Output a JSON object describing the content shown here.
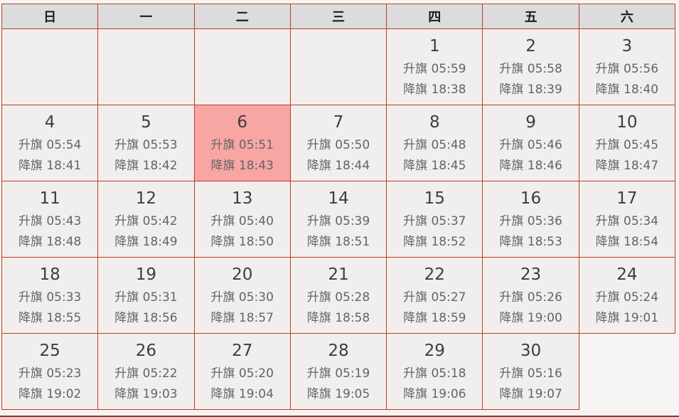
{
  "calendar": {
    "weekday_headers": [
      "日",
      "一",
      "二",
      "三",
      "四",
      "五",
      "六"
    ],
    "raise_label": "升旗",
    "lower_label": "降旗",
    "leading_empty_cells": 4,
    "trailing_ghost_cells": 1,
    "highlighted_day": 6,
    "days": [
      {
        "day": 1,
        "raise": "05:59",
        "lower": "18:38"
      },
      {
        "day": 2,
        "raise": "05:58",
        "lower": "18:39"
      },
      {
        "day": 3,
        "raise": "05:56",
        "lower": "18:40"
      },
      {
        "day": 4,
        "raise": "05:54",
        "lower": "18:41"
      },
      {
        "day": 5,
        "raise": "05:53",
        "lower": "18:42"
      },
      {
        "day": 6,
        "raise": "05:51",
        "lower": "18:43"
      },
      {
        "day": 7,
        "raise": "05:50",
        "lower": "18:44"
      },
      {
        "day": 8,
        "raise": "05:48",
        "lower": "18:45"
      },
      {
        "day": 9,
        "raise": "05:46",
        "lower": "18:46"
      },
      {
        "day": 10,
        "raise": "05:45",
        "lower": "18:47"
      },
      {
        "day": 11,
        "raise": "05:43",
        "lower": "18:48"
      },
      {
        "day": 12,
        "raise": "05:42",
        "lower": "18:49"
      },
      {
        "day": 13,
        "raise": "05:40",
        "lower": "18:50"
      },
      {
        "day": 14,
        "raise": "05:39",
        "lower": "18:51"
      },
      {
        "day": 15,
        "raise": "05:37",
        "lower": "18:52"
      },
      {
        "day": 16,
        "raise": "05:36",
        "lower": "18:53"
      },
      {
        "day": 17,
        "raise": "05:34",
        "lower": "18:54"
      },
      {
        "day": 18,
        "raise": "05:33",
        "lower": "18:55"
      },
      {
        "day": 19,
        "raise": "05:31",
        "lower": "18:56"
      },
      {
        "day": 20,
        "raise": "05:30",
        "lower": "18:57"
      },
      {
        "day": 21,
        "raise": "05:28",
        "lower": "18:58"
      },
      {
        "day": 22,
        "raise": "05:27",
        "lower": "18:59"
      },
      {
        "day": 23,
        "raise": "05:26",
        "lower": "19:00"
      },
      {
        "day": 24,
        "raise": "05:24",
        "lower": "19:01"
      },
      {
        "day": 25,
        "raise": "05:23",
        "lower": "19:02"
      },
      {
        "day": 26,
        "raise": "05:22",
        "lower": "19:03"
      },
      {
        "day": 27,
        "raise": "05:20",
        "lower": "19:04"
      },
      {
        "day": 28,
        "raise": "05:19",
        "lower": "19:05"
      },
      {
        "day": 29,
        "raise": "05:18",
        "lower": "19:06"
      },
      {
        "day": 30,
        "raise": "05:16",
        "lower": "19:07"
      }
    ]
  },
  "colors": {
    "border_red": "#c23b28",
    "today_highlight": "#f8a6a4",
    "header_background": "#dcdcdc",
    "cell_background": "#f0efed",
    "bottom_divider": "#8b3a28"
  }
}
